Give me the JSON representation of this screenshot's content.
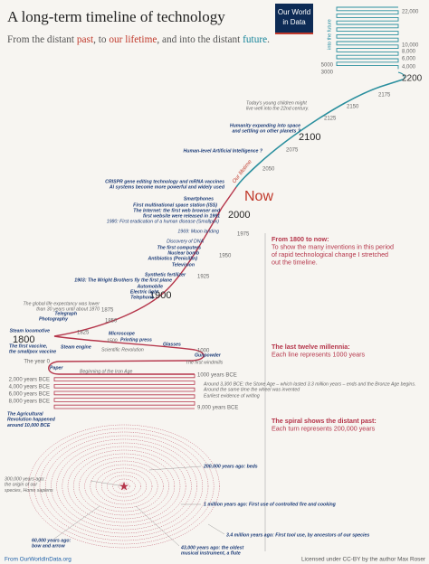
{
  "header": {
    "title": "A long-term timeline of technology",
    "subtitle": [
      "From the distant ",
      "past",
      ", to ",
      "our lifetime",
      ", and into the distant ",
      "future",
      "."
    ],
    "logo": [
      "Our World",
      "in Data"
    ]
  },
  "future": {
    "label": "into the future",
    "right": [
      "22,000",
      "10,000",
      "8,000",
      "6,000",
      "4,000"
    ],
    "left": [
      "5000",
      "3000"
    ],
    "end": "2200"
  },
  "timeline": {
    "lifetime": "Our lifetime",
    "now": "Now",
    "years": [
      "2175",
      "2150",
      "2125",
      "2100",
      "2075",
      "2050",
      "2000",
      "1975",
      "1950",
      "1925",
      "1900",
      "1875",
      "1850",
      "1825",
      "1800",
      "1000",
      "The year 0",
      "1000 years BCE",
      "2,000 years BCE",
      "4,000 years BCE",
      "6,000 years BCE",
      "8,000 years BCE",
      "9,000 years BCE"
    ]
  },
  "events": [
    [
      "Today's young children might",
      "live well into the 22nd century."
    ],
    [
      "Humanity expanding into space",
      "and settling on other planets ?"
    ],
    [
      "Human-level Artificial Intelligence ?"
    ],
    [
      "CRISPR gene editing technology and mRNA vaccines"
    ],
    [
      "AI systems become more powerful and widely used"
    ],
    [
      "Smartphones"
    ],
    [
      "First multinational space station (ISS)"
    ],
    [
      "The Internet: the first web browser and",
      "first website were released in 1991"
    ],
    [
      "1980: First eradication of a human disease (Smallpox)"
    ],
    [
      "1969: Moon landing"
    ],
    [
      "Discovery of DNA"
    ],
    [
      "The first computers"
    ],
    [
      "Nuclear bomb"
    ],
    [
      "Antibiotics (Penicillin)"
    ],
    [
      "Television"
    ],
    [
      "Synthetic fertilizer"
    ],
    [
      "1903: The Wright Brothers fly the first plane"
    ],
    [
      "Automobile"
    ],
    [
      "Electric light"
    ],
    [
      "Telephone"
    ],
    [
      "The global life expectancy was lower",
      "than 30 years until about 1870"
    ],
    [
      "Telegraph"
    ],
    [
      "Photography"
    ],
    [
      "Steam locomotive"
    ],
    [
      "The first vaccine,",
      "the smallpox vaccine"
    ],
    [
      "Steam engine"
    ],
    [
      "Scientific Revolution"
    ],
    [
      "Microscope"
    ],
    [
      "1500"
    ],
    [
      "Printing press"
    ],
    [
      "Glasses"
    ],
    [
      "Gunpowder"
    ],
    [
      "The first windmills"
    ],
    [
      "Paper"
    ],
    [
      "Beginning of the Iron Age"
    ],
    [
      "Around 3,300 BCE: the Stone Age – which lasted 3.3 million years – ends and the Bronze Age begins."
    ],
    [
      "Around the same time the wheel was invented"
    ],
    [
      "Earliest evidence of writing"
    ],
    [
      "The Agricultural",
      "Revolution happened",
      "around 10,000 BCE"
    ]
  ],
  "notes": [
    {
      "heading": "From 1800 to now:",
      "lines": [
        "To show the many inventions in this period",
        "of rapid technological change I stretched",
        "out the timeline."
      ]
    },
    {
      "heading": "The last twelve millennia:",
      "lines": [
        "Each line represents 1000 years"
      ]
    },
    {
      "heading": "The spiral shows the distant past:",
      "lines": [
        "Each turn represents 200,000 years"
      ]
    }
  ],
  "spiral": [
    [
      "300,000 years ago:",
      "the origin of our",
      "species, Homo sapiens"
    ],
    [
      "200,000 years ago: beds"
    ],
    [
      "1 million years ago: First use of controlled fire and cooking"
    ],
    [
      "3.4 million years ago: First tool use, by ancestors of our species"
    ],
    [
      "60,000 years ago:",
      "bow and arrow"
    ],
    [
      "43,000 years ago: the oldest",
      "musical instrument, a flute"
    ]
  ],
  "footer": {
    "source": "From OurWorldInData.org",
    "license": "Licensed under CC-BY by the author Max Roser"
  }
}
